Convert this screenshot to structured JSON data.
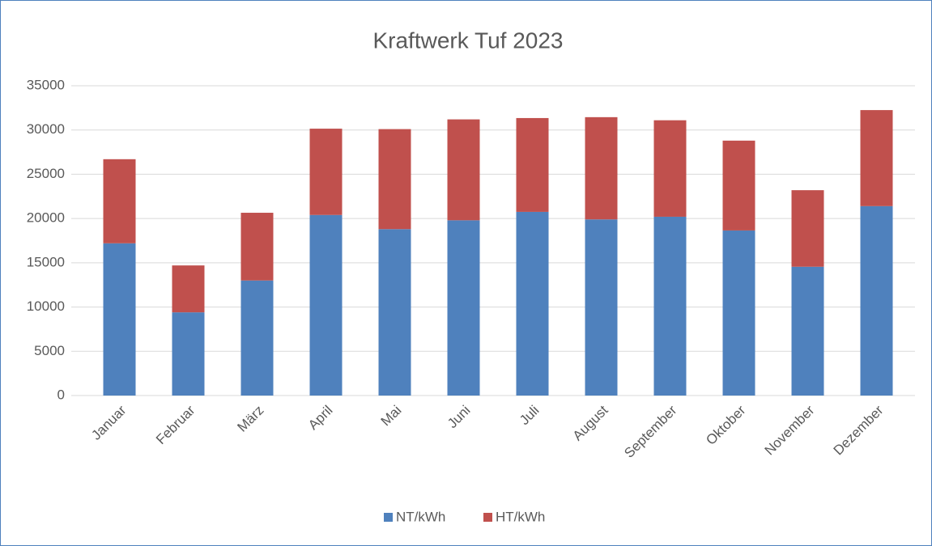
{
  "chart_data": {
    "type": "stacked_bar",
    "title": "Kraftwerk Tuf 2023",
    "categories": [
      "Januar",
      "Februar",
      "März",
      "April",
      "Mai",
      "Juni",
      "Juli",
      "August",
      "September",
      "Oktober",
      "November",
      "Dezember"
    ],
    "series": [
      {
        "name": "NT/kWh",
        "color": "#4f81bd",
        "values": [
          17200,
          9400,
          13000,
          20400,
          18800,
          19800,
          20750,
          19900,
          20200,
          18650,
          14550,
          21400
        ]
      },
      {
        "name": "HT/kWh",
        "color": "#c0504d",
        "values": [
          9500,
          5300,
          7650,
          9750,
          11300,
          11400,
          10600,
          11550,
          10900,
          10150,
          8650,
          10850
        ]
      }
    ],
    "ylim": [
      0,
      35000
    ],
    "yticks": [
      0,
      5000,
      10000,
      15000,
      20000,
      25000,
      30000,
      35000
    ],
    "grid": true,
    "legend": "bottom"
  }
}
